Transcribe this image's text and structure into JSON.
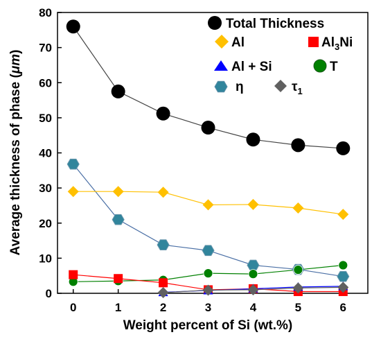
{
  "chart_data": {
    "type": "line",
    "xlabel": "Weight percent of Si (wt.%)",
    "ylabel": "Average thickness of phase (",
    "ylabel_unit": "μm",
    "ylabel_close": ")",
    "x": [
      0,
      1,
      2,
      3,
      4,
      5,
      6
    ],
    "x_ticks": [
      "0",
      "1",
      "2",
      "3",
      "4",
      "5",
      "6"
    ],
    "xlim": [
      -0.35,
      6.55
    ],
    "ylim": [
      0,
      80
    ],
    "y_ticks": [
      "0",
      "10",
      "20",
      "30",
      "40",
      "50",
      "60",
      "70",
      "80"
    ],
    "grid": false,
    "legend_position": "top-right",
    "series": [
      {
        "name": "Total Thickness",
        "label": "Total Thickness",
        "marker": "circle",
        "color": "#000000",
        "line_color": "#444444",
        "x": [
          0,
          1,
          2,
          3,
          4,
          5,
          6
        ],
        "values": [
          76,
          57.5,
          51.2,
          47.2,
          43.8,
          42.2,
          41.3
        ]
      },
      {
        "name": "Al",
        "label": "Al",
        "marker": "diamond",
        "color": "#FFC000",
        "line_color": "#FFC000",
        "x": [
          0,
          1,
          2,
          3,
          4,
          5,
          6
        ],
        "values": [
          29,
          29,
          28.8,
          25.2,
          25.3,
          24.3,
          22.5
        ]
      },
      {
        "name": "Al3Ni",
        "label_main": "Al",
        "label_sub": "3",
        "label_tail": "Ni",
        "marker": "square",
        "color": "#FF0000",
        "line_color": "#FF0000",
        "x": [
          0,
          1,
          2,
          3,
          4,
          5,
          6
        ],
        "values": [
          5.3,
          4.2,
          3.0,
          1.0,
          1.3,
          0.5,
          0.5
        ]
      },
      {
        "name": "Al + Si",
        "label": "Al + Si",
        "marker": "triangle",
        "color": "#0000FF",
        "line_color": "#0000FF",
        "x": [
          2,
          3,
          4,
          5,
          6
        ],
        "values": [
          0.3,
          0.8,
          1.3,
          1.8,
          2.0
        ]
      },
      {
        "name": "T",
        "label": "T",
        "marker": "circle",
        "color": "#008000",
        "line_color": "#008000",
        "x": [
          0,
          1,
          2,
          3,
          4,
          5,
          6
        ],
        "values": [
          3.3,
          3.5,
          3.8,
          5.7,
          5.5,
          6.7,
          8.0
        ]
      },
      {
        "name": "η",
        "label": "η",
        "marker": "hexagon",
        "color": "#31859C",
        "line_color": "#4A6FA5",
        "x": [
          0,
          1,
          2,
          3,
          4,
          5,
          6
        ],
        "values": [
          36.8,
          21.0,
          13.8,
          12.2,
          8.0,
          6.8,
          4.8
        ]
      },
      {
        "name": "τ1",
        "label_main": "τ",
        "label_sub": "1",
        "marker": "diamond",
        "color": "#606060",
        "line_color": "#606060",
        "x": [
          2,
          3,
          4,
          5,
          6
        ],
        "values": [
          0.2,
          0.9,
          1.0,
          1.5,
          1.7
        ]
      }
    ]
  }
}
